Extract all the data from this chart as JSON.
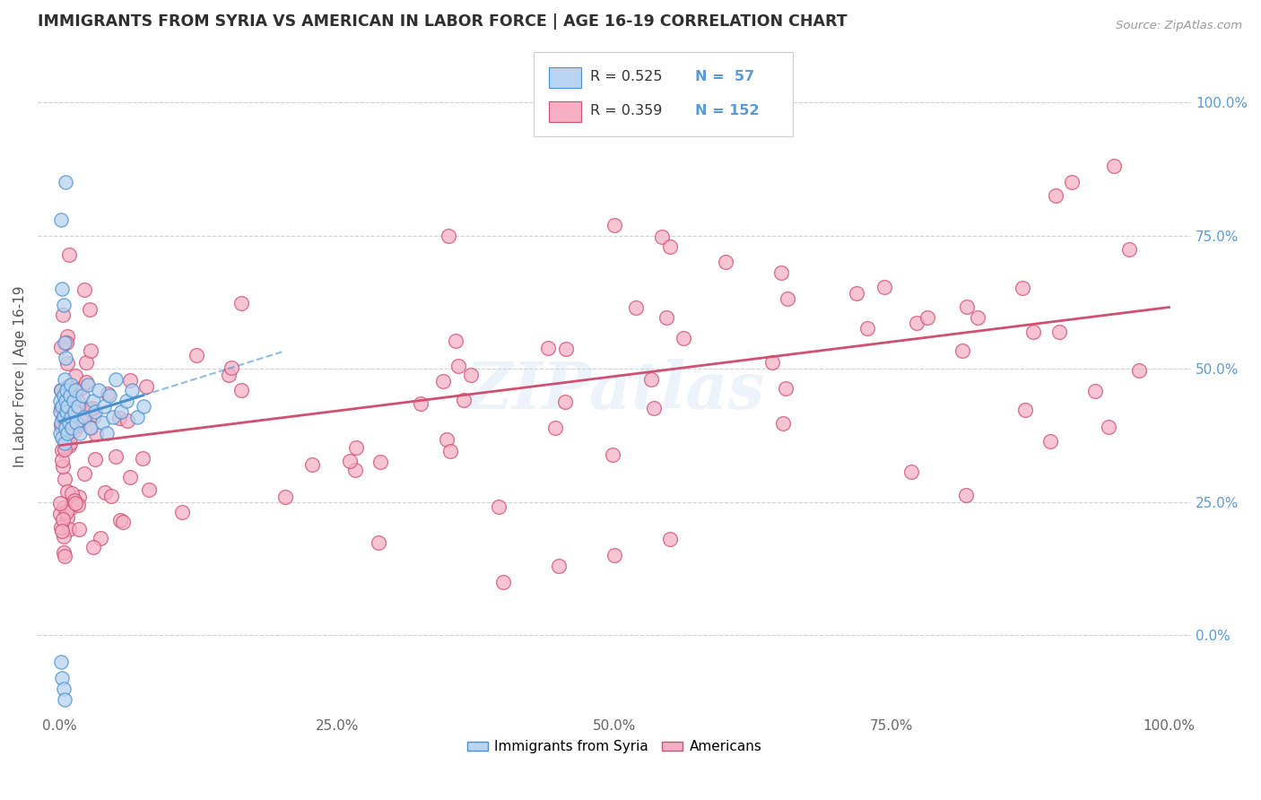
{
  "title": "IMMIGRANTS FROM SYRIA VS AMERICAN IN LABOR FORCE | AGE 16-19 CORRELATION CHART",
  "source": "Source: ZipAtlas.com",
  "ylabel": "In Labor Force | Age 16-19",
  "right_yticks": [
    0.0,
    0.25,
    0.5,
    0.75,
    1.0
  ],
  "right_yticklabels": [
    "0.0%",
    "25.0%",
    "50.0%",
    "75.0%",
    "100.0%"
  ],
  "xtick_labels": [
    "0.0%",
    "25.0%",
    "50.0%",
    "75.0%",
    "100.0%"
  ],
  "xtick_positions": [
    0.0,
    0.25,
    0.5,
    0.75,
    1.0
  ],
  "legend_r_syria": "R = 0.525",
  "legend_n_syria": "N =  57",
  "legend_r_american": "R = 0.359",
  "legend_n_american": "N = 152",
  "legend_label_syria": "Immigrants from Syria",
  "legend_label_american": "Americans",
  "syria_color": "#b8d4f0",
  "american_color": "#f5b0c5",
  "syria_line_color": "#4a90d0",
  "american_line_color": "#d05070",
  "watermark": "ZIPatlas",
  "background_color": "#ffffff",
  "grid_color": "#cccccc",
  "title_color": "#303030",
  "axis_label_color": "#5b9bd5",
  "xlim": [
    -0.02,
    1.02
  ],
  "ylim": [
    -0.15,
    1.12
  ]
}
